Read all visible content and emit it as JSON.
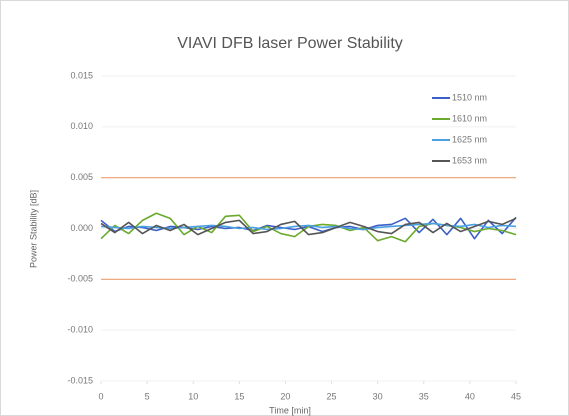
{
  "chart_data": {
    "type": "line",
    "title": "VIAVI DFB laser Power Stability",
    "x_label": "Time [min]",
    "y_label": "Power Stability [dB]",
    "x": [
      0,
      1.5,
      3,
      4.5,
      6,
      7.5,
      9,
      10.5,
      12,
      13.5,
      15,
      16.5,
      18,
      19.5,
      21,
      22.5,
      24,
      25.5,
      27,
      28.5,
      30,
      31.5,
      33,
      34.5,
      36,
      37.5,
      39,
      40.5,
      42,
      43.5,
      45
    ],
    "series": [
      {
        "name": "1510 nm",
        "color": "#3a5fc8",
        "values": [
          0.0008,
          -0.0003,
          0.0002,
          0.0001,
          -0.0002,
          0.0002,
          0.0001,
          -0.0001,
          0.0002,
          0.0,
          0.0001,
          -0.0002,
          0.0003,
          0.0001,
          -0.0001,
          0.0002,
          -0.0003,
          0.0001,
          0.0002,
          -0.0001,
          0.0003,
          0.0004,
          0.001,
          -0.0004,
          0.0009,
          -0.0006,
          0.001,
          -0.001,
          0.0008,
          -0.0005,
          0.0011
        ]
      },
      {
        "name": "1610 nm",
        "color": "#6aaa2e",
        "values": [
          -0.001,
          0.0003,
          -0.0005,
          0.0008,
          0.0015,
          0.001,
          -0.0006,
          0.0002,
          -0.0004,
          0.0012,
          0.0013,
          -0.0003,
          0.0002,
          -0.0005,
          -0.0008,
          0.0002,
          0.0004,
          0.0003,
          -0.0002,
          0.0001,
          -0.0012,
          -0.0008,
          -0.0013,
          0.0002,
          0.0005,
          0.0003,
          0.0001,
          -0.0003,
          0.0,
          -0.0002,
          -0.0006
        ]
      },
      {
        "name": "1625 nm",
        "color": "#4aa0e0",
        "values": [
          0.0002,
          0.0001,
          0.0,
          0.0002,
          0.0001,
          0.0,
          0.0001,
          0.0002,
          0.0003,
          0.0002,
          0.0,
          0.0001,
          -0.0001,
          0.0,
          0.0002,
          0.0003,
          0.0001,
          0.0002,
          0.0,
          -0.0001,
          0.0001,
          0.0002,
          0.0003,
          0.0004,
          0.0005,
          0.0003,
          0.0002,
          0.0004,
          0.0001,
          0.0003,
          0.0002
        ]
      },
      {
        "name": "1653 nm",
        "color": "#555555",
        "values": [
          0.0005,
          -0.0004,
          0.0006,
          -0.0005,
          0.0003,
          -0.0002,
          0.0004,
          -0.0006,
          0.0,
          0.0006,
          0.0008,
          -0.0005,
          -0.0003,
          0.0004,
          0.0007,
          -0.0006,
          -0.0004,
          0.0001,
          0.0006,
          0.0002,
          -0.0003,
          -0.0005,
          0.0004,
          0.0006,
          -0.0004,
          0.0005,
          -0.0003,
          0.0002,
          0.0007,
          0.0004,
          0.001
        ]
      }
    ],
    "reference_lines": {
      "values": [
        0.005,
        -0.005
      ],
      "color": "#f0a070"
    },
    "xlim": [
      0,
      45
    ],
    "xticks": [
      0,
      5,
      10,
      15,
      20,
      25,
      30,
      35,
      40,
      45
    ],
    "ylim": [
      -0.015,
      0.015
    ],
    "yticks": [
      -0.015,
      {
        "value": -0.01,
        "label": "-0.010"
      },
      -0.005,
      {
        "value": 0,
        "label": "0.000"
      },
      0.005,
      {
        "value": 0.01,
        "label": "0.010"
      },
      0.015
    ],
    "grid": true,
    "legend": "upper right"
  }
}
